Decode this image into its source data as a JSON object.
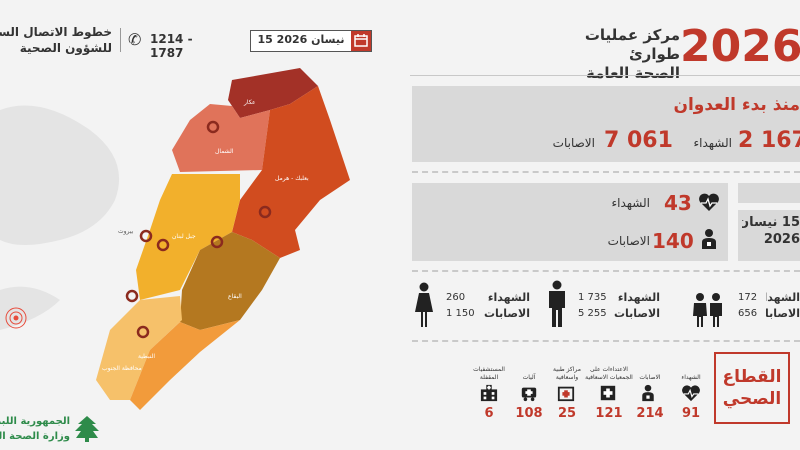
{
  "header": {
    "year": "2026",
    "title_line1": "مركز عمليات طوارئ",
    "title_line2": "الصحة العامة",
    "date": "15 نيسان 2026",
    "hotline": "1214 - 1787",
    "hotline_label_line1": "خطوط الاتصال الساخنة",
    "hotline_label_line2": "للشؤون الصحية"
  },
  "since_aggression": {
    "title": "منذ بدء العدوان",
    "killed_value": "2 167",
    "killed_label": "الشهداء",
    "injured_value": "7 061",
    "injured_label": "الاصابات"
  },
  "daily": {
    "date_line1": "15 نيسان",
    "date_line2": "2026",
    "killed_value": "43",
    "killed_label": "الشهداء",
    "injured_value": "140",
    "injured_label": "الاصابات"
  },
  "demographics": {
    "women": {
      "killed": "260",
      "injured": "1 150"
    },
    "men": {
      "killed": "1 735",
      "injured": "5 255"
    },
    "children": {
      "killed": "172",
      "injured": "656"
    },
    "killed_label": "الشهداء",
    "injured_label": "الاصابات"
  },
  "health_sector": {
    "title_line1": "القطاع",
    "title_line2": "الصحي",
    "items": [
      {
        "label": "الشهداء",
        "value": "91",
        "icon": "heart-pulse-icon"
      },
      {
        "label": "الاصابات",
        "value": "214",
        "icon": "injured-person-icon"
      },
      {
        "label": "الاعتداءات على الجمعيات الاسعافية",
        "value": "121",
        "icon": "paramedic-icon"
      },
      {
        "label": "مراكز طبية واسعافية",
        "value": "25",
        "icon": "medical-center-icon"
      },
      {
        "label": "آليات",
        "value": "108",
        "icon": "ambulance-icon"
      },
      {
        "label": "المستشفيات المقفلة",
        "value": "6",
        "icon": "hospital-icon"
      }
    ]
  },
  "map": {
    "regions": {
      "akkar": "عكار",
      "north": "الشمال",
      "baalbek": "بعلبك - هرمل",
      "mount_lebanon": "جبل لبنان",
      "beirut": "بيروت",
      "bekaa": "البقاع",
      "south": "الجنوب",
      "nabatieh": "النبطية",
      "south_gov": "محافظة الجنوب"
    },
    "colors": {
      "akkar": "#a33127",
      "north": "#e0735a",
      "baalbek": "#d14c1f",
      "mount_lebanon": "#f2b02c",
      "bekaa": "#b47820",
      "south": "#f6c16a",
      "nabatieh": "#f29b3b"
    }
  },
  "footer": {
    "republic": "الجمهورية اللبنانية",
    "ministry": "وزارة الصحة العامة"
  },
  "colors": {
    "accent": "#c0392b",
    "panel": "#d9d9d9",
    "background": "#f3f3f3"
  }
}
